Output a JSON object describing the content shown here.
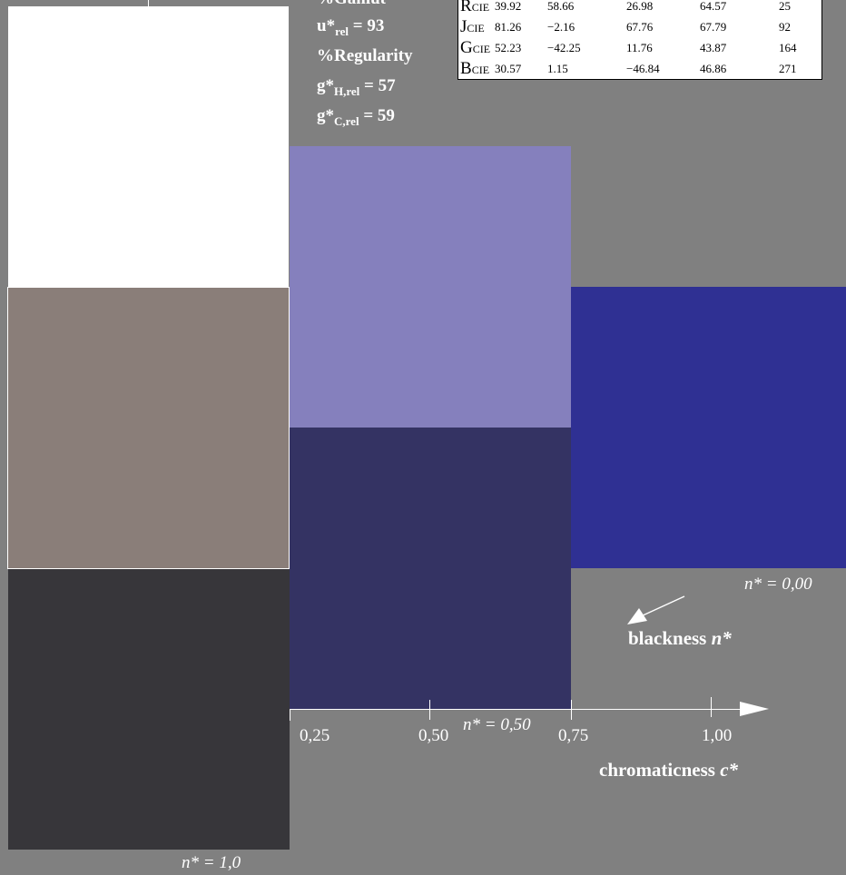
{
  "stats": {
    "gamut": "%Gamut",
    "u_rel_prefix": "u*",
    "u_rel_sub": "rel",
    "u_rel_value": " = 93",
    "regularity": "%Regularity",
    "gH_prefix": "g*",
    "gH_sub": "H,rel",
    "gH_value": " = 57",
    "gC_prefix": "g*",
    "gC_sub": "C,rel",
    "gC_value": " = 59"
  },
  "cie_table": {
    "rows": [
      {
        "name": "R",
        "sub": "CIE",
        "v1": "39.92",
        "v2": "58.66",
        "v3": "26.98",
        "v4": "64.57",
        "v5": "25"
      },
      {
        "name": "J",
        "sub": "CIE",
        "v1": "81.26",
        "v2": "−2.16",
        "v3": "67.76",
        "v4": "67.79",
        "v5": "92"
      },
      {
        "name": "G",
        "sub": "CIE",
        "v1": "52.23",
        "v2": "−42.25",
        "v3": "11.76",
        "v4": "43.87",
        "v5": "164"
      },
      {
        "name": "B",
        "sub": "CIE",
        "v1": "30.57",
        "v2": "1.15",
        "v3": "−46.84",
        "v4": "46.86",
        "v5": "271"
      }
    ]
  },
  "patches": {
    "white": "#ffffff",
    "grey_mid": "#8a7e79",
    "black": "#37363a",
    "light_violet": "#8580bd",
    "dark_violet": "#343363",
    "blue": "#2f3093"
  },
  "labels": {
    "n_000": "n* = 0,00",
    "n_050": "n* = 0,50",
    "n_10": "n* = 1,0",
    "blackness_word": "blackness ",
    "blackness_var": "n*",
    "chroma_word": "chromaticness ",
    "chroma_var": "c*"
  },
  "axis": {
    "ticks": [
      "0,25",
      "0,50",
      "0,75",
      "1,00"
    ]
  }
}
